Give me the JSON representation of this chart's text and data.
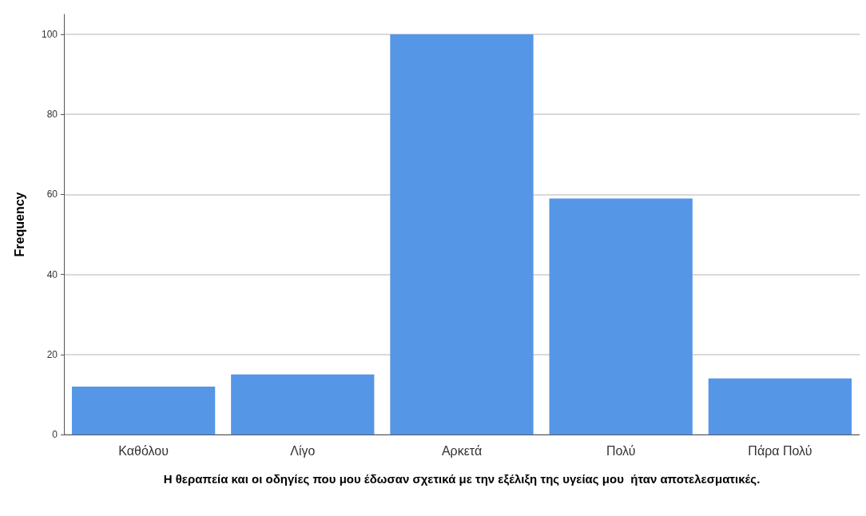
{
  "chart_data": {
    "type": "bar",
    "xlabel": "Η θεραπεία και οι οδηγίες που μου έδωσαν σχετικά με την εξέλιξη της υγείας μου  ήταν αποτελεσματικές.",
    "ylabel": "Frequency",
    "categories": [
      "Καθόλου",
      "Λίγο",
      "Αρκετά",
      "Πολύ",
      "Πάρα Πολύ"
    ],
    "values": [
      12,
      15,
      100,
      59,
      14
    ],
    "color": "#5596e6",
    "ylim": [
      0,
      105
    ],
    "yticks": [
      0,
      20,
      40,
      60,
      80,
      100
    ],
    "grid": "y"
  }
}
